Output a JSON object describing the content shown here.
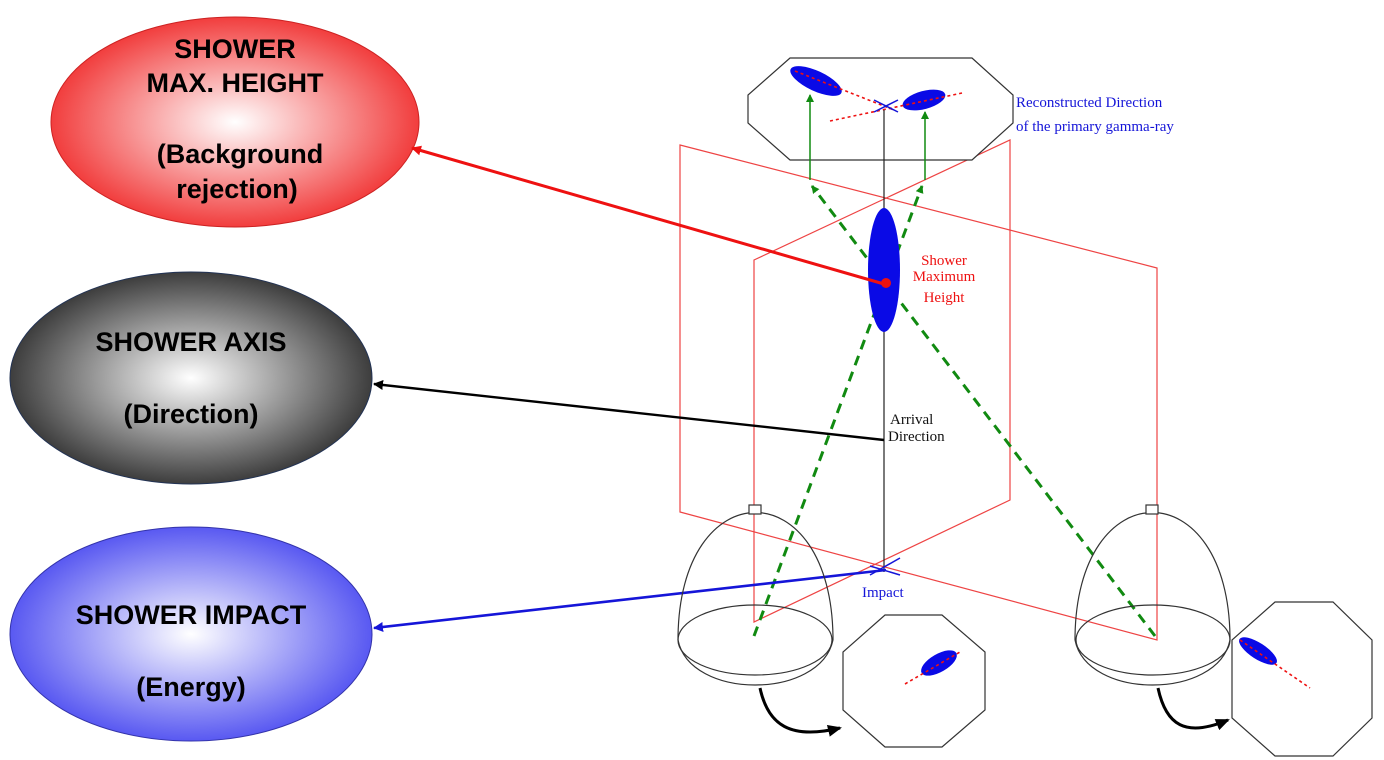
{
  "bubbles": {
    "max_height": {
      "line1": "SHOWER",
      "line2": "MAX. HEIGHT",
      "line3": "(Background",
      "line4": "rejection)"
    },
    "axis": {
      "line1": "SHOWER AXIS",
      "line2": "(Direction)"
    },
    "impact": {
      "line1": "SHOWER IMPACT",
      "line2": "(Energy)"
    }
  },
  "labels": {
    "reconstructed_line1": "Reconstructed Direction",
    "reconstructed_line2": "of the primary gamma-ray",
    "shower_max_line1": "Shower",
    "shower_max_line2": "Maximum",
    "shower_max_line3": "Height",
    "arrival_line1": "Arrival",
    "arrival_line2": "Direction",
    "impact": "Impact"
  },
  "colors": {
    "red": "#ee1111",
    "blue": "#1515d8",
    "green": "#118a11",
    "black": "#000000",
    "plane": "#ee4444",
    "ellipse_blue": "#0a0ae6"
  }
}
